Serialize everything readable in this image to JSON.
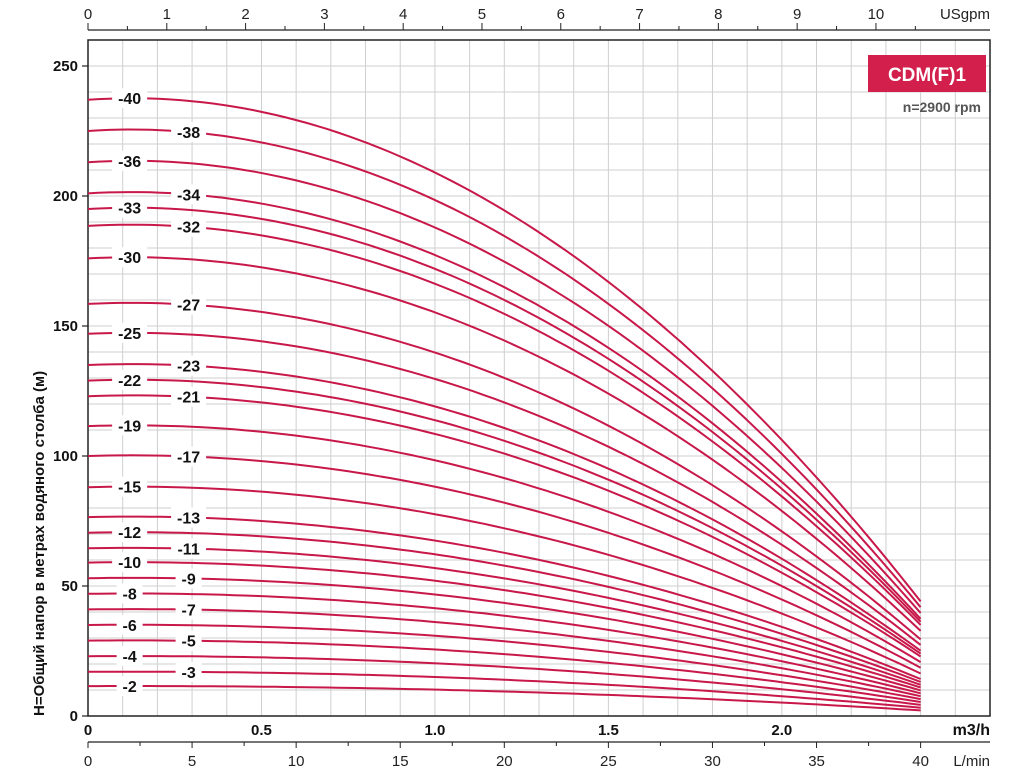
{
  "chart_data": {
    "type": "line",
    "model": "CDM(F)1",
    "speed": "n=2900 rpm",
    "ylabel": "H=Общий напор в метрах водяного столба (м)",
    "units": {
      "top": "USgpm",
      "primary": "m3/h",
      "bottom": "L/min"
    },
    "x_primary": {
      "ticks": [
        "0",
        "0.5",
        "1.0",
        "1.5",
        "2.0"
      ],
      "tick_values": [
        0,
        0.5,
        1.0,
        1.5,
        2.0
      ],
      "range": [
        0,
        2.6
      ]
    },
    "x_top": {
      "ticks": [
        "0",
        "1",
        "2",
        "3",
        "4",
        "5",
        "6",
        "7",
        "8",
        "9",
        "10"
      ]
    },
    "x_bottom": {
      "ticks": [
        "0",
        "5",
        "10",
        "15",
        "20",
        "25",
        "30",
        "35",
        "40"
      ]
    },
    "y": {
      "ticks": [
        "0",
        "50",
        "100",
        "150",
        "200",
        "250"
      ],
      "tick_values": [
        0,
        50,
        100,
        150,
        200,
        250
      ],
      "range": [
        0,
        260
      ]
    },
    "flow_end": 2.4,
    "series": [
      {
        "name": "-2",
        "shutoff": 11.5
      },
      {
        "name": "-3",
        "shutoff": 17
      },
      {
        "name": "-4",
        "shutoff": 23
      },
      {
        "name": "-5",
        "shutoff": 29
      },
      {
        "name": "-6",
        "shutoff": 35
      },
      {
        "name": "-7",
        "shutoff": 41
      },
      {
        "name": "-8",
        "shutoff": 47
      },
      {
        "name": "-9",
        "shutoff": 53
      },
      {
        "name": "-10",
        "shutoff": 59
      },
      {
        "name": "-11",
        "shutoff": 64.5
      },
      {
        "name": "-12",
        "shutoff": 70.5
      },
      {
        "name": "-13",
        "shutoff": 76.5
      },
      {
        "name": "-15",
        "shutoff": 88
      },
      {
        "name": "-17",
        "shutoff": 100
      },
      {
        "name": "-19",
        "shutoff": 111.5
      },
      {
        "name": "-21",
        "shutoff": 123
      },
      {
        "name": "-22",
        "shutoff": 129
      },
      {
        "name": "-23",
        "shutoff": 135
      },
      {
        "name": "-25",
        "shutoff": 147
      },
      {
        "name": "-27",
        "shutoff": 158.5
      },
      {
        "name": "-30",
        "shutoff": 176
      },
      {
        "name": "-32",
        "shutoff": 188.5
      },
      {
        "name": "-33",
        "shutoff": 195
      },
      {
        "name": "-34",
        "shutoff": 201
      },
      {
        "name": "-36",
        "shutoff": 213
      },
      {
        "name": "-38",
        "shutoff": 225
      },
      {
        "name": "-40",
        "shutoff": 237
      }
    ],
    "colors": {
      "curve": "#c8184a",
      "badge": "#d21f4b",
      "grid": "#cfcfcf",
      "frame": "#222222"
    }
  }
}
